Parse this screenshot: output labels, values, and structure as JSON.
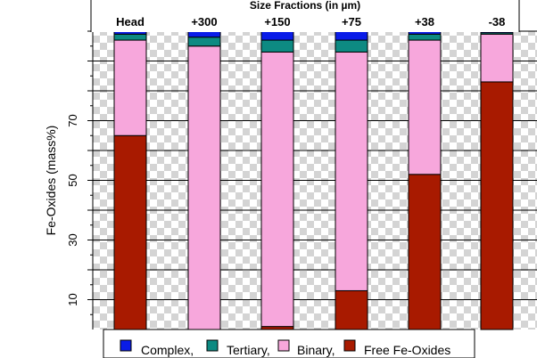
{
  "chart_data": {
    "type": "bar",
    "stacked": true,
    "top_axis_label": "Size Fractions (in µm)",
    "ylabel": "Fe-Oxides (mass%)",
    "ylim": [
      0,
      100
    ],
    "y_tick_labels": [
      10,
      30,
      50,
      70
    ],
    "categories": [
      "Head",
      "+300",
      "+150",
      "+75",
      "+38",
      "-38"
    ],
    "series": [
      {
        "name": "Free Fe-Oxides",
        "color": "#a81a00",
        "values": [
          65,
          0,
          1,
          13,
          52,
          83
        ]
      },
      {
        "name": "Binary",
        "color": "#f7a7dc",
        "values": [
          32,
          95,
          92,
          80,
          45,
          16
        ]
      },
      {
        "name": "Tertiary",
        "color": "#0d8a82",
        "values": [
          2,
          3,
          4,
          4,
          2,
          0.5
        ]
      },
      {
        "name": "Complex",
        "color": "#0a1ce8",
        "values": [
          1,
          2,
          3,
          3,
          1,
          0.5
        ]
      }
    ],
    "legend": {
      "placement": "bottom",
      "labels": [
        "Complex,",
        "Tertiary,",
        "Binary,",
        "Free Fe-Oxides"
      ],
      "colors": [
        "#0a1ce8",
        "#0d8a82",
        "#f7a7dc",
        "#a81a00"
      ]
    },
    "grid": true
  }
}
